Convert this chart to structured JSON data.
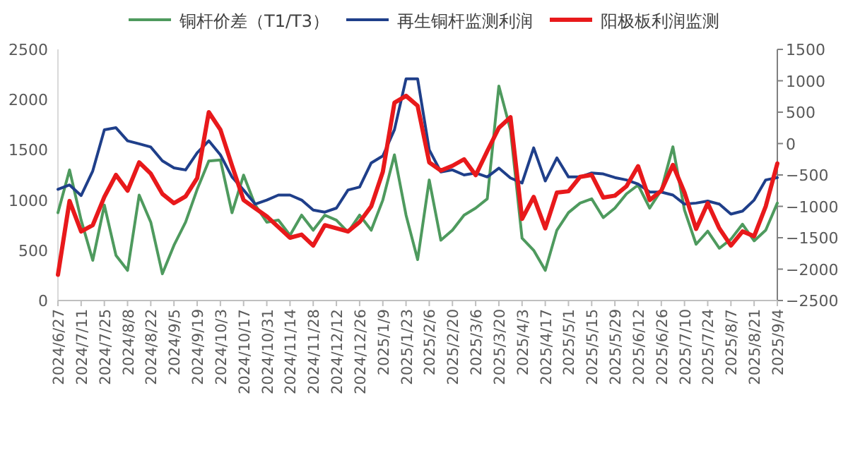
{
  "chart_data": {
    "type": "line",
    "legend": "top",
    "grid": false,
    "x": [
      "2024-06-27",
      "2024-07-04",
      "2024-07-11",
      "2024-07-18",
      "2024-07-25",
      "2024-08-01",
      "2024-08-08",
      "2024-08-15",
      "2024-08-22",
      "2024-08-29",
      "2024-09-05",
      "2024-09-12",
      "2024-09-19",
      "2024-09-26",
      "2024-10-03",
      "2024-10-10",
      "2024-10-17",
      "2024-10-24",
      "2024-10-31",
      "2024-11-07",
      "2024-11-14",
      "2024-11-21",
      "2024-11-28",
      "2024-12-05",
      "2024-12-12",
      "2024-12-19",
      "2024-12-26",
      "2025-01-02",
      "2025-01-09",
      "2025-01-16",
      "2025-01-23",
      "2025-01-30",
      "2025-02-06",
      "2025-02-13",
      "2025-02-20",
      "2025-02-27",
      "2025-03-06",
      "2025-03-13",
      "2025-03-20",
      "2025-03-27",
      "2025-04-03",
      "2025-04-10",
      "2025-04-17",
      "2025-04-24",
      "2025-05-01",
      "2025-05-08",
      "2025-05-15",
      "2025-05-22",
      "2025-05-29",
      "2025-06-05",
      "2025-06-12",
      "2025-06-19",
      "2025-06-26",
      "2025-07-03",
      "2025-07-10",
      "2025-07-17",
      "2025-07-24",
      "2025-07-31",
      "2025-08-07",
      "2025-08-14",
      "2025-08-21",
      "2025-08-28",
      "2025-09-04"
    ],
    "xlim": [
      "2024-06-27",
      "2025-09-04"
    ],
    "xticks": [
      {
        "value": "2024-06-27",
        "label": "2024/6/27"
      },
      {
        "value": "2024-07-11",
        "label": "2024/7/11"
      },
      {
        "value": "2024-07-25",
        "label": "2024/7/25"
      },
      {
        "value": "2024-08-08",
        "label": "2024/8/8"
      },
      {
        "value": "2024-08-22",
        "label": "2024/8/22"
      },
      {
        "value": "2024-09-05",
        "label": "2024/9/5"
      },
      {
        "value": "2024-09-19",
        "label": "2024/9/19"
      },
      {
        "value": "2024-10-03",
        "label": "2024/10/3"
      },
      {
        "value": "2024-10-17",
        "label": "2024/10/17"
      },
      {
        "value": "2024-10-31",
        "label": "2024/10/31"
      },
      {
        "value": "2024-11-14",
        "label": "2024/11/14"
      },
      {
        "value": "2024-11-28",
        "label": "2024/11/28"
      },
      {
        "value": "2024-12-12",
        "label": "2024/12/12"
      },
      {
        "value": "2024-12-26",
        "label": "2024/12/26"
      },
      {
        "value": "2025-01-09",
        "label": "2025/1/9"
      },
      {
        "value": "2025-01-23",
        "label": "2025/1/23"
      },
      {
        "value": "2025-02-06",
        "label": "2025/2/6"
      },
      {
        "value": "2025-02-20",
        "label": "2025/2/20"
      },
      {
        "value": "2025-03-06",
        "label": "2025/3/6"
      },
      {
        "value": "2025-03-20",
        "label": "2025/3/20"
      },
      {
        "value": "2025-04-03",
        "label": "2025/4/3"
      },
      {
        "value": "2025-04-17",
        "label": "2025/4/17"
      },
      {
        "value": "2025-05-01",
        "label": "2025/5/1"
      },
      {
        "value": "2025-05-15",
        "label": "2025/5/15"
      },
      {
        "value": "2025-05-29",
        "label": "2025/5/29"
      },
      {
        "value": "2025-06-12",
        "label": "2025/6/12"
      },
      {
        "value": "2025-06-26",
        "label": "2025/6/26"
      },
      {
        "value": "2025-07-10",
        "label": "2025/7/10"
      },
      {
        "value": "2025-07-24",
        "label": "2025/7/24"
      },
      {
        "value": "2025-08-07",
        "label": "2025/8/7"
      },
      {
        "value": "2025-08-21",
        "label": "2025/8/21"
      },
      {
        "value": "2025-09-04",
        "label": "2025/9/4"
      }
    ],
    "ylim": [
      0,
      2500
    ],
    "yticks": [
      0,
      500,
      1000,
      1500,
      2000,
      2500
    ],
    "y2lim": [
      -2500,
      1500
    ],
    "y2ticks": [
      -2500,
      -2000,
      -1500,
      -1000,
      -500,
      0,
      500,
      1000,
      1500
    ],
    "series": [
      {
        "name": "铜杆价差（T1/T3）",
        "color": "#4e9a5e",
        "values": [
          874,
          1300,
          800,
          400,
          950,
          450,
          300,
          1050,
          780,
          266,
          550,
          780,
          1107,
          1388,
          1400,
          874,
          1248,
          950,
          780,
          800,
          650,
          850,
          700,
          850,
          800,
          680,
          850,
          700,
          1000,
          1450,
          850,
          407,
          1200,
          600,
          700,
          850,
          920,
          1012,
          2135,
          1700,
          620,
          500,
          300,
          700,
          875,
          970,
          1012,
          825,
          920,
          1062,
          1150,
          920,
          1100,
          1530,
          900,
          560,
          690,
          520,
          610,
          760,
          594,
          700,
          970
        ]
      },
      {
        "name": "再生铜杆监测利润",
        "color": "#1f3f8a",
        "values": [
          1107,
          1150,
          1045,
          1290,
          1700,
          1720,
          1590,
          1560,
          1528,
          1390,
          1320,
          1300,
          1470,
          1590,
          1450,
          1230,
          1100,
          960,
          1000,
          1050,
          1050,
          1000,
          900,
          880,
          920,
          1100,
          1130,
          1370,
          1440,
          1700,
          2206,
          2206,
          1500,
          1280,
          1300,
          1250,
          1270,
          1230,
          1318,
          1220,
          1170,
          1520,
          1190,
          1420,
          1230,
          1230,
          1270,
          1260,
          1224,
          1200,
          1160,
          1080,
          1080,
          1050,
          960,
          970,
          990,
          960,
          860,
          890,
          1000,
          1200,
          1224
        ]
      },
      {
        "name": "阳极板利润监测",
        "color": "#e8191b",
        "axis": "y2",
        "values": [
          -2089,
          -914,
          -1400,
          -1300,
          -850,
          -500,
          -750,
          -300,
          -480,
          -802,
          -950,
          -841,
          -550,
          500,
          220,
          -350,
          -900,
          -1030,
          -1160,
          -1330,
          -1500,
          -1450,
          -1625,
          -1300,
          -1350,
          -1400,
          -1250,
          -1000,
          -450,
          650,
          760,
          600,
          -300,
          -430,
          -354,
          -250,
          -504,
          -120,
          250,
          420,
          -1200,
          -850,
          -1350,
          -780,
          -760,
          -530,
          -500,
          -860,
          -830,
          -680,
          -360,
          -900,
          -750,
          -340,
          -780,
          -1360,
          -950,
          -1350,
          -1625,
          -1400,
          -1476,
          -1000,
          -317
        ]
      }
    ]
  }
}
